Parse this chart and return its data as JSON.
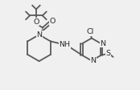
{
  "bg_color": "#f0f0f0",
  "line_color": "#5a5a5a",
  "text_color": "#2a2a2a",
  "lw": 1.3,
  "fs": 6.8,
  "figsize": [
    1.74,
    1.12
  ],
  "dpi": 100,
  "xlim": [
    0.0,
    1.0
  ],
  "ylim": [
    0.08,
    0.98
  ]
}
